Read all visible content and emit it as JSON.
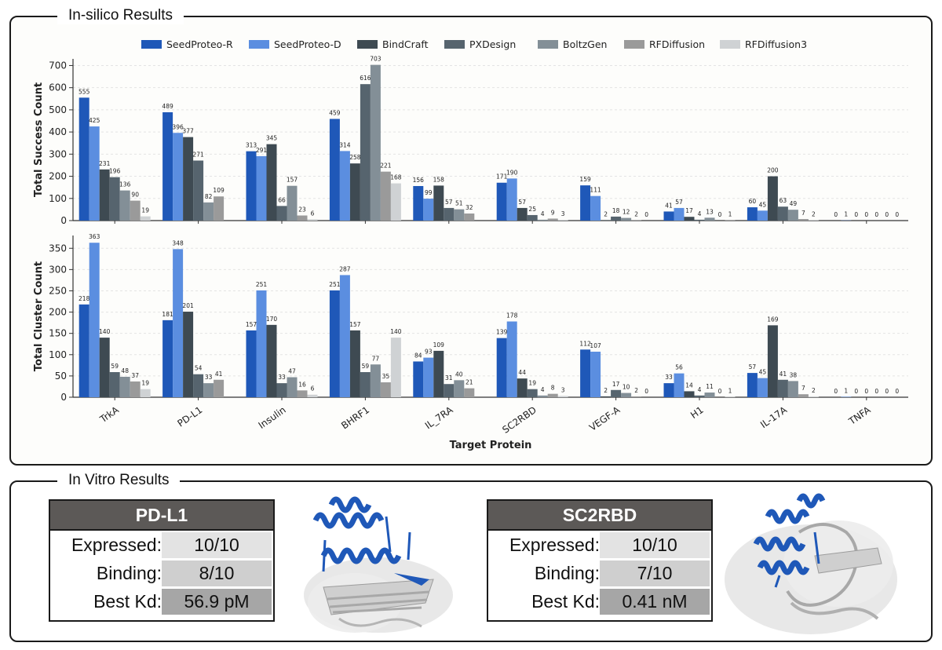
{
  "panels": {
    "top_title": "In-silico Results",
    "bottom_title": "In Vitro Results"
  },
  "chart_data": {
    "type": "bar",
    "xlabel": "Target Protein",
    "categories": [
      "TrkA",
      "PD-L1",
      "Insulin",
      "BHRF1",
      "IL_7RA",
      "SC2RBD",
      "VEGF-A",
      "H1",
      "IL-17A",
      "TNFA"
    ],
    "legend_position": "top",
    "series": [
      {
        "name": "SeedProteo-R",
        "color": "#1f58b8"
      },
      {
        "name": "SeedProteo-D",
        "color": "#5b8ee0"
      },
      {
        "name": "BindCraft",
        "color": "#3e4a52"
      },
      {
        "name": "PXDesign",
        "color": "#56646e"
      },
      {
        "name": "BoltzGen",
        "color": "#838f97"
      },
      {
        "name": "RFDiffusion",
        "color": "#9a9a9a"
      },
      {
        "name": "RFDiffusion3",
        "color": "#cfd2d4"
      }
    ],
    "subplots": [
      {
        "ylabel": "Total Success Count",
        "ylim": [
          0,
          730
        ],
        "yticks": [
          0,
          100,
          200,
          300,
          400,
          500,
          600,
          700
        ],
        "values": [
          [
            555,
            425,
            231,
            196,
            136,
            90,
            19
          ],
          [
            489,
            396,
            377,
            271,
            82,
            109,
            null
          ],
          [
            313,
            291,
            345,
            66,
            157,
            23,
            6
          ],
          [
            459,
            314,
            258,
            616,
            703,
            221,
            168
          ],
          [
            156,
            99,
            158,
            57,
            51,
            32,
            null
          ],
          [
            171,
            190,
            57,
            25,
            4,
            9,
            3
          ],
          [
            159,
            111,
            2,
            18,
            12,
            2,
            0
          ],
          [
            41,
            57,
            17,
            4,
            13,
            0,
            1
          ],
          [
            60,
            45,
            200,
            63,
            49,
            7,
            2
          ],
          [
            0,
            1,
            0,
            0,
            0,
            0,
            0
          ]
        ]
      },
      {
        "ylabel": "Total Cluster Count",
        "ylim": [
          0,
          380
        ],
        "yticks": [
          0,
          50,
          100,
          150,
          200,
          250,
          300,
          350
        ],
        "values": [
          [
            218,
            363,
            140,
            59,
            48,
            37,
            19
          ],
          [
            181,
            348,
            201,
            54,
            33,
            41,
            null
          ],
          [
            157,
            251,
            170,
            33,
            47,
            16,
            6
          ],
          [
            251,
            287,
            157,
            59,
            77,
            35,
            140
          ],
          [
            84,
            93,
            109,
            31,
            40,
            21,
            null
          ],
          [
            139,
            178,
            44,
            19,
            4,
            8,
            3
          ],
          [
            112,
            107,
            2,
            17,
            10,
            2,
            0
          ],
          [
            33,
            56,
            14,
            4,
            11,
            0,
            1
          ],
          [
            57,
            45,
            169,
            41,
            38,
            7,
            2
          ],
          [
            0,
            1,
            0,
            0,
            0,
            0,
            0
          ]
        ]
      }
    ]
  },
  "in_vitro": [
    {
      "target": "PD-L1",
      "rows": [
        {
          "label": "Expressed:",
          "value": "10/10"
        },
        {
          "label": "Binding:",
          "value": "8/10"
        },
        {
          "label": "Best Kd:",
          "value": "56.9 pM"
        }
      ]
    },
    {
      "target": "SC2RBD",
      "rows": [
        {
          "label": "Expressed:",
          "value": "10/10"
        },
        {
          "label": "Binding:",
          "value": "7/10"
        },
        {
          "label": "Best Kd:",
          "value": "0.41 nM"
        }
      ]
    }
  ],
  "colors": {
    "card_header": "#5c5957",
    "row_value_1": "#e3e3e3",
    "row_value_2": "#cfcfcf",
    "row_value_3": "#a6a6a6",
    "binder": "#1f58b8",
    "target": "#c8c8c8"
  }
}
